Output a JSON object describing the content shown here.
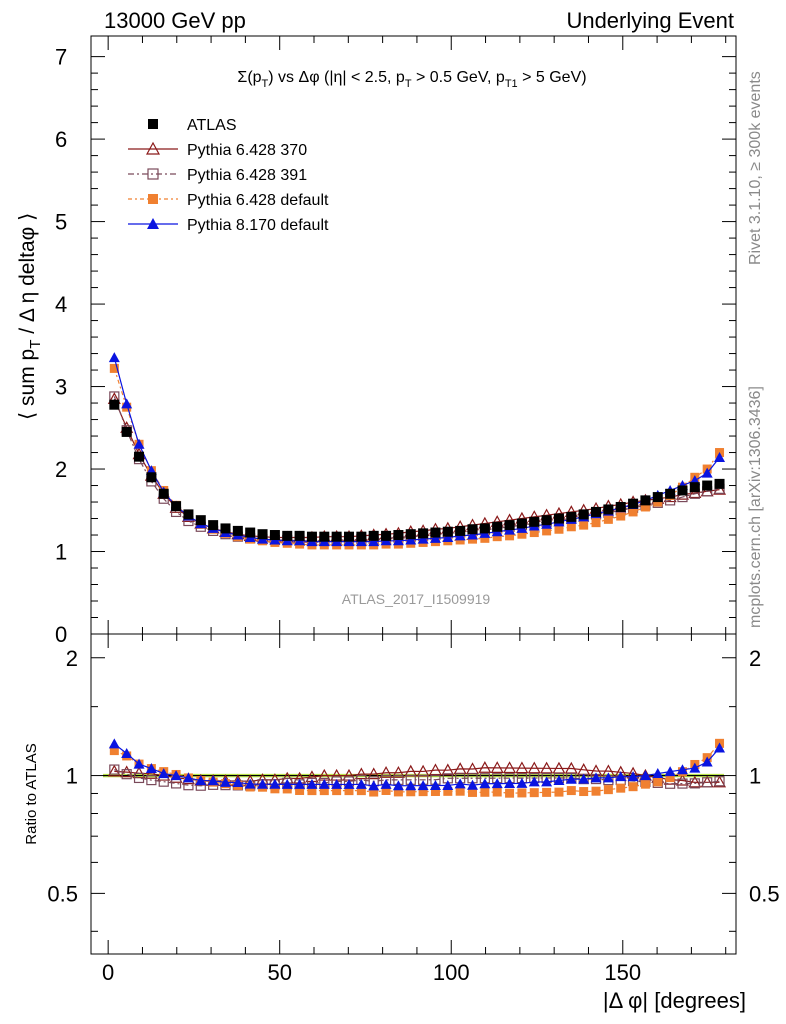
{
  "header": {
    "left": "13000 GeV pp",
    "right": "Underlying Event"
  },
  "side_labels": {
    "rivet": "Rivet 3.1.10, ≥ 300k events",
    "mcplots": "mcplots.cern.ch [arXiv:1306.3436]"
  },
  "chart_data": [
    {
      "type": "scatter",
      "title": "Σ(p_T) vs Δφ (|η| < 2.5, p_T > 0.5 GeV, p_T1 > 5 GeV)",
      "title_parts": {
        "a": "Σ(p",
        "a_sub": "T",
        "b": ") vs Δφ (|η| < 2.5, p",
        "b_sub": "T",
        "c": " > 0.5 GeV, p",
        "c_sub": "T1",
        "d": " > 5 GeV)"
      },
      "ylabel": "⟨ sum p_T / Δ η deltaφ ⟩",
      "ylabel_parts": {
        "a": "⟨ sum p",
        "a_sub": "T",
        "b": " / Δ η deltaφ ⟩"
      },
      "watermark": "ATLAS_2017_I1509919",
      "xlim": [
        -5,
        183
      ],
      "ylim": [
        0,
        7.25
      ],
      "yticks": [
        "0",
        "1",
        "2",
        "3",
        "4",
        "5",
        "6",
        "7"
      ],
      "x": [
        1.8,
        5.4,
        9.0,
        12.6,
        16.2,
        19.8,
        23.4,
        27.0,
        30.6,
        34.2,
        37.8,
        41.4,
        45.0,
        48.6,
        52.2,
        55.8,
        59.4,
        63.0,
        66.6,
        70.2,
        73.8,
        77.4,
        81.0,
        84.6,
        88.2,
        91.8,
        95.4,
        99.0,
        102.6,
        106.2,
        109.8,
        113.4,
        117.0,
        120.6,
        124.2,
        127.8,
        131.4,
        135.0,
        138.6,
        142.2,
        145.8,
        149.4,
        153.0,
        156.6,
        160.2,
        163.8,
        167.4,
        171.0,
        174.6,
        178.2
      ],
      "series": [
        {
          "name": "ATLAS",
          "color": "#000000",
          "marker": "square-filled",
          "values": [
            2.78,
            2.45,
            2.15,
            1.9,
            1.7,
            1.55,
            1.45,
            1.38,
            1.32,
            1.28,
            1.25,
            1.23,
            1.21,
            1.2,
            1.19,
            1.19,
            1.18,
            1.18,
            1.18,
            1.18,
            1.18,
            1.19,
            1.19,
            1.2,
            1.21,
            1.22,
            1.23,
            1.24,
            1.25,
            1.27,
            1.28,
            1.3,
            1.32,
            1.34,
            1.36,
            1.38,
            1.4,
            1.42,
            1.45,
            1.48,
            1.51,
            1.54,
            1.58,
            1.62,
            1.66,
            1.7,
            1.74,
            1.78,
            1.8,
            1.82
          ]
        },
        {
          "name": "Pythia 6.428 370",
          "color": "#8b1a1a",
          "marker": "triangle-open",
          "values": [
            2.85,
            2.5,
            2.18,
            1.92,
            1.7,
            1.53,
            1.42,
            1.34,
            1.28,
            1.24,
            1.21,
            1.19,
            1.18,
            1.17,
            1.17,
            1.17,
            1.17,
            1.18,
            1.18,
            1.18,
            1.19,
            1.2,
            1.21,
            1.22,
            1.24,
            1.25,
            1.27,
            1.28,
            1.3,
            1.32,
            1.34,
            1.36,
            1.38,
            1.4,
            1.42,
            1.44,
            1.46,
            1.48,
            1.5,
            1.52,
            1.55,
            1.57,
            1.6,
            1.62,
            1.64,
            1.66,
            1.69,
            1.71,
            1.73,
            1.75
          ]
        },
        {
          "name": "Pythia 6.428 391",
          "color": "#7a4a5a",
          "marker": "square-open",
          "values": [
            2.88,
            2.47,
            2.12,
            1.85,
            1.64,
            1.48,
            1.37,
            1.3,
            1.25,
            1.21,
            1.18,
            1.16,
            1.15,
            1.14,
            1.14,
            1.13,
            1.13,
            1.13,
            1.14,
            1.14,
            1.15,
            1.15,
            1.16,
            1.17,
            1.18,
            1.19,
            1.2,
            1.22,
            1.23,
            1.25,
            1.26,
            1.28,
            1.3,
            1.32,
            1.34,
            1.36,
            1.38,
            1.4,
            1.42,
            1.45,
            1.47,
            1.5,
            1.53,
            1.56,
            1.59,
            1.62,
            1.66,
            1.7,
            1.73,
            1.76
          ]
        },
        {
          "name": "Pythia 6.428 default",
          "color": "#f08030",
          "marker": "square-filled",
          "values": [
            3.22,
            2.75,
            2.3,
            1.98,
            1.74,
            1.56,
            1.43,
            1.34,
            1.27,
            1.22,
            1.18,
            1.15,
            1.13,
            1.11,
            1.1,
            1.09,
            1.08,
            1.08,
            1.08,
            1.08,
            1.08,
            1.08,
            1.09,
            1.09,
            1.1,
            1.11,
            1.12,
            1.13,
            1.14,
            1.15,
            1.16,
            1.18,
            1.19,
            1.21,
            1.23,
            1.25,
            1.27,
            1.3,
            1.32,
            1.35,
            1.39,
            1.43,
            1.48,
            1.54,
            1.6,
            1.68,
            1.78,
            1.9,
            2.0,
            2.2
          ]
        },
        {
          "name": "Pythia 8.170 default",
          "color": "#0a14e0",
          "marker": "triangle-filled",
          "values": [
            3.35,
            2.79,
            2.3,
            1.98,
            1.72,
            1.55,
            1.43,
            1.34,
            1.28,
            1.23,
            1.2,
            1.17,
            1.15,
            1.14,
            1.13,
            1.13,
            1.12,
            1.12,
            1.12,
            1.12,
            1.12,
            1.12,
            1.13,
            1.13,
            1.14,
            1.15,
            1.16,
            1.17,
            1.19,
            1.2,
            1.22,
            1.24,
            1.26,
            1.28,
            1.31,
            1.33,
            1.36,
            1.39,
            1.42,
            1.46,
            1.49,
            1.53,
            1.57,
            1.62,
            1.68,
            1.74,
            1.8,
            1.86,
            1.95,
            2.14
          ]
        }
      ],
      "legend": {
        "placement": "top-left"
      }
    },
    {
      "type": "scatter",
      "ylabel": "Ratio to ATLAS",
      "xlabel": "|Δ φ| [degrees]",
      "xlim": [
        -5,
        183
      ],
      "ylim": [
        0.35,
        2.3
      ],
      "xticks": [
        "0",
        "50",
        "100",
        "150"
      ],
      "yticks": [
        "0.5",
        "1",
        "2"
      ],
      "reference_band_color": "#b8e04a",
      "reference_line": 1.0
    }
  ]
}
